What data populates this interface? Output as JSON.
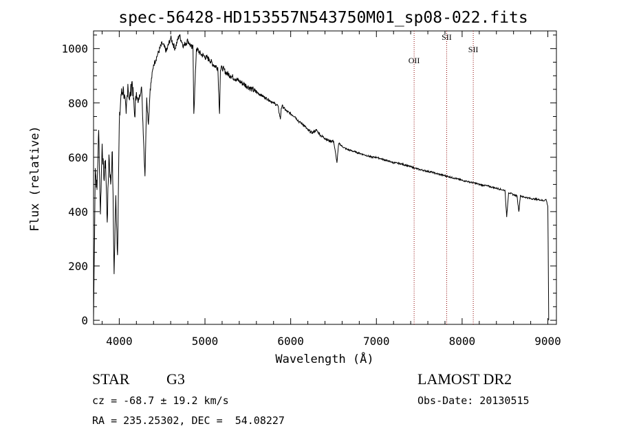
{
  "chart_data": {
    "type": "line",
    "title": "spec-56428-HD153557N543750M01_sp08-022.fits",
    "xlabel": "Wavelength (Å)",
    "ylabel": "Flux (relative)",
    "xlim": [
      3700,
      9100
    ],
    "ylim": [
      -15,
      1065
    ],
    "xticks": [
      4000,
      5000,
      6000,
      7000,
      8000,
      9000
    ],
    "yticks": [
      0,
      200,
      400,
      600,
      800,
      1000
    ],
    "grid": false,
    "series": [
      {
        "name": "spectrum",
        "x": [
          3700,
          3720,
          3740,
          3760,
          3780,
          3800,
          3820,
          3840,
          3860,
          3880,
          3900,
          3920,
          3940,
          3960,
          3980,
          4000,
          4020,
          4050,
          4080,
          4100,
          4120,
          4150,
          4180,
          4200,
          4220,
          4260,
          4300,
          4320,
          4340,
          4360,
          4400,
          4450,
          4500,
          4550,
          4600,
          4650,
          4700,
          4750,
          4800,
          4850,
          4860,
          4870,
          4900,
          4950,
          5000,
          5050,
          5100,
          5150,
          5170,
          5180,
          5200,
          5250,
          5300,
          5350,
          5400,
          5450,
          5500,
          5550,
          5600,
          5650,
          5700,
          5750,
          5800,
          5850,
          5880,
          5890,
          5900,
          5950,
          6000,
          6050,
          6100,
          6150,
          6200,
          6250,
          6300,
          6350,
          6400,
          6450,
          6500,
          6540,
          6560,
          6570,
          6600,
          6650,
          6700,
          6750,
          6800,
          6850,
          6900,
          6950,
          7000,
          7050,
          7100,
          7150,
          7200,
          7250,
          7300,
          7350,
          7400,
          7450,
          7500,
          7550,
          7600,
          7650,
          7700,
          7750,
          7800,
          7850,
          7900,
          7950,
          8000,
          8050,
          8100,
          8150,
          8200,
          8250,
          8300,
          8350,
          8400,
          8450,
          8498,
          8500,
          8520,
          8542,
          8560,
          8600,
          8640,
          8662,
          8680,
          8700,
          8750,
          8800,
          8850,
          8900,
          8950,
          8980,
          9000,
          9010
        ],
        "values": [
          0,
          560,
          480,
          700,
          390,
          650,
          520,
          590,
          360,
          610,
          500,
          620,
          170,
          460,
          240,
          720,
          830,
          850,
          760,
          870,
          810,
          880,
          750,
          840,
          800,
          860,
          530,
          820,
          720,
          850,
          940,
          980,
          1020,
          990,
          1040,
          1000,
          1050,
          1010,
          1030,
          1000,
          1010,
          760,
          1000,
          980,
          970,
          960,
          940,
          930,
          760,
          920,
          930,
          910,
          900,
          890,
          880,
          870,
          860,
          850,
          840,
          830,
          820,
          810,
          800,
          790,
          740,
          780,
          790,
          770,
          760,
          750,
          730,
          720,
          700,
          690,
          700,
          680,
          670,
          660,
          660,
          580,
          650,
          650,
          640,
          630,
          625,
          620,
          615,
          610,
          605,
          600,
          600,
          595,
          590,
          585,
          580,
          578,
          575,
          570,
          565,
          560,
          555,
          552,
          548,
          545,
          540,
          536,
          532,
          528,
          524,
          520,
          515,
          512,
          508,
          505,
          500,
          497,
          494,
          490,
          486,
          482,
          478,
          480,
          380,
          470,
          468,
          462,
          458,
          400,
          460,
          455,
          452,
          448,
          446,
          444,
          440,
          445,
          420,
          0
        ]
      }
    ],
    "annotations": [
      {
        "label": "OII",
        "x": 7440
      },
      {
        "label": "SII",
        "x": 7820
      },
      {
        "label": "SII",
        "x": 8130
      }
    ],
    "line_color": "#000000",
    "marker_color": "#8b0000"
  },
  "footer": {
    "object_class": "STAR",
    "subclass": "G3",
    "survey": "LAMOST DR2",
    "redshift": "cz = -68.7 ± 19.2 km/s",
    "obs_date": "Obs-Date: 20130515",
    "coordinates": "RA = 235.25302, DEC =  54.08227"
  }
}
